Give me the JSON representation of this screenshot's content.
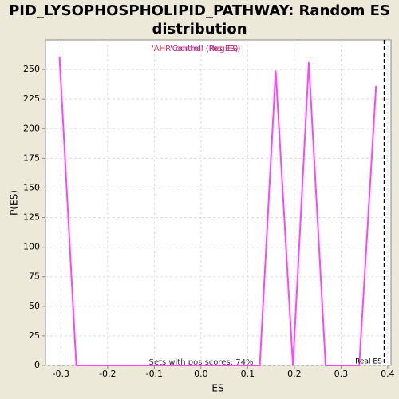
{
  "chart_data": {
    "type": "line",
    "title": "PID_LYSOPHOSPHOLIPID_PATHWAY: Random ES distribution",
    "x_label": "ES",
    "y_label": "P(ES)",
    "legend_entries": [
      {
        "text": "'AHR' control (Neg ES)",
        "color": "#e0304e"
      },
      {
        "text": "'Control' (Pos ES)",
        "color": "#9a2aa8"
      }
    ],
    "annotation": "Sets with pos scores: 74%",
    "real_es": {
      "value": 0.393,
      "label": "Real ES"
    },
    "x": [
      -0.303,
      -0.267,
      0.126,
      0.16,
      0.197,
      0.231,
      0.267,
      0.339,
      0.375
    ],
    "series": [
      {
        "color": "#ff44ff",
        "values": [
          261,
          0,
          0,
          249,
          0,
          256,
          0,
          0,
          236
        ]
      }
    ],
    "xlim": [
      -0.333,
      0.407
    ],
    "xticks": [
      -0.3,
      -0.2,
      -0.1,
      {
        "value": 0,
        "label": "0.0"
      },
      0.1,
      0.2,
      0.3,
      0.4
    ],
    "ylim": [
      0,
      275
    ],
    "yticks": [
      0,
      25,
      50,
      75,
      100,
      125,
      150,
      175,
      200,
      225,
      250
    ],
    "grid": true
  }
}
